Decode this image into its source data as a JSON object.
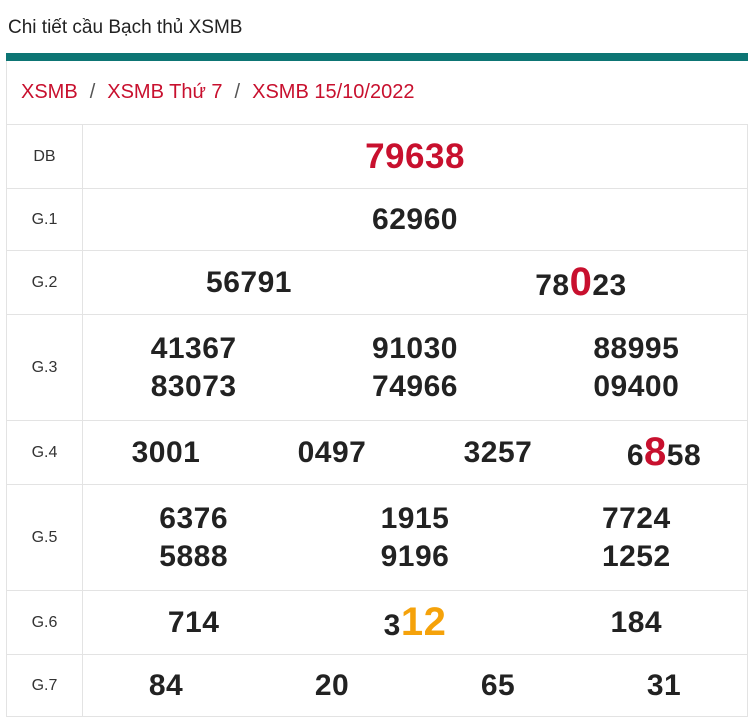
{
  "header": {
    "title": "Chi tiết cầu Bạch thủ XSMB"
  },
  "breadcrumb": {
    "items": [
      "XSMB",
      "XSMB Thứ 7",
      "XSMB 15/10/2022"
    ],
    "separator": "/"
  },
  "table": {
    "special_color": "#c8102e",
    "rows": [
      {
        "label": "DB",
        "numbers": [
          "79638"
        ],
        "heights": 64
      },
      {
        "label": "G.1",
        "numbers": [
          "62960"
        ]
      },
      {
        "label": "G.2",
        "numbers": [
          "56791",
          {
            "before": "78",
            "mark": "0",
            "after": "23",
            "mark_color": "#c8102e"
          }
        ]
      },
      {
        "label": "G.3",
        "numbers": [
          "41367",
          "91030",
          "88995",
          "83073",
          "74966",
          "09400"
        ]
      },
      {
        "label": "G.4",
        "numbers": [
          "3001",
          "0497",
          "3257",
          {
            "before": "6",
            "mark": "8",
            "after": "58",
            "mark_color": "#c8102e"
          }
        ]
      },
      {
        "label": "G.5",
        "numbers": [
          "6376",
          "1915",
          "7724",
          "5888",
          "9196",
          "1252"
        ]
      },
      {
        "label": "G.6",
        "numbers": [
          "714",
          {
            "before": "3",
            "mark": "12",
            "mark_color": "#f5a20a"
          },
          "184"
        ]
      },
      {
        "label": "G.7",
        "numbers": [
          "84",
          "20",
          "65",
          "31"
        ]
      }
    ]
  }
}
